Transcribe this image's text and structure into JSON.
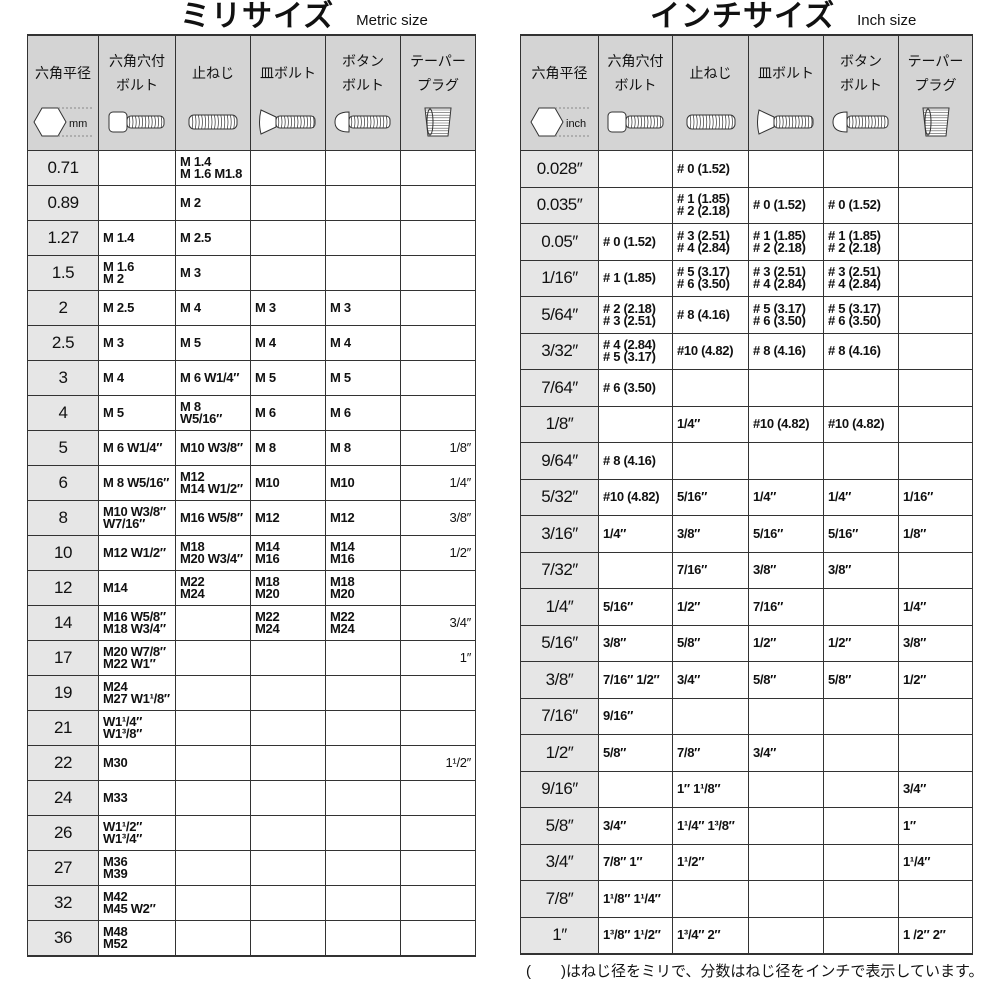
{
  "metric": {
    "title_jp": "ミリサイズ",
    "title_en": "Metric size",
    "unit": "mm",
    "headers": [
      "六角平径",
      "六角穴付\nボルト",
      "止ねじ",
      "皿ボルト",
      "ボタン\nボルト",
      "テーパー\nプラグ"
    ],
    "icons": [
      "hex-icon",
      "socket-head-bolt-icon",
      "set-screw-icon",
      "flat-head-bolt-icon",
      "button-head-bolt-icon",
      "taper-plug-icon"
    ],
    "rows": [
      [
        "0.71",
        "",
        "M 1.4\nM 1.6 M1.8",
        "",
        "",
        ""
      ],
      [
        "0.89",
        "",
        "M 2",
        "",
        "",
        ""
      ],
      [
        "1.27",
        "M 1.4",
        "M 2.5",
        "",
        "",
        ""
      ],
      [
        "1.5",
        "M 1.6\nM 2",
        "M 3",
        "",
        "",
        ""
      ],
      [
        "2",
        "M 2.5",
        "M 4",
        "M 3",
        "M 3",
        ""
      ],
      [
        "2.5",
        "M 3",
        "M 5",
        "M 4",
        "M 4",
        ""
      ],
      [
        "3",
        "M 4",
        "M 6 W1/4″",
        "M 5",
        "M 5",
        ""
      ],
      [
        "4",
        "M 5",
        "M 8 W5/16″",
        "M 6",
        "M 6",
        ""
      ],
      [
        "5",
        "M 6 W1/4″",
        "M10 W3/8″",
        "M 8",
        "M 8",
        "1/8″"
      ],
      [
        "6",
        "M 8 W5/16″",
        "M12\nM14 W1/2″",
        "M10",
        "M10",
        "1/4″"
      ],
      [
        "8",
        "M10 W3/8″\n     W7/16″",
        "M16 W5/8″",
        "M12",
        "M12",
        "3/8″"
      ],
      [
        "10",
        "M12 W1/2″",
        "M18\nM20 W3/4″",
        "M14\nM16",
        "M14\nM16",
        "1/2″"
      ],
      [
        "12",
        "M14",
        "M22\nM24",
        "M18\nM20",
        "M18\nM20",
        ""
      ],
      [
        "14",
        "M16 W5/8″\nM18 W3/4″",
        "",
        "M22\nM24",
        "M22\nM24",
        "3/4″"
      ],
      [
        "17",
        "M20 W7/8″\nM22 W1″",
        "",
        "",
        "",
        "1″"
      ],
      [
        "19",
        "M24\nM27 W1¹/8″",
        "",
        "",
        "",
        ""
      ],
      [
        "21",
        "      W1¹/4″\n      W1³/8″",
        "",
        "",
        "",
        ""
      ],
      [
        "22",
        "M30",
        "",
        "",
        "",
        "1¹/2″"
      ],
      [
        "24",
        "M33",
        "",
        "",
        "",
        ""
      ],
      [
        "26",
        "      W1¹/2″\n      W1³/4″",
        "",
        "",
        "",
        ""
      ],
      [
        "27",
        "M36\nM39",
        "",
        "",
        "",
        ""
      ],
      [
        "32",
        "M42\nM45 W2″",
        "",
        "",
        "",
        ""
      ],
      [
        "36",
        "M48\nM52",
        "",
        "",
        "",
        ""
      ]
    ]
  },
  "inch": {
    "title_jp": "インチサイズ",
    "title_en": "Inch size",
    "unit": "inch",
    "headers": [
      "六角平径",
      "六角穴付\nボルト",
      "止ねじ",
      "皿ボルト",
      "ボタン\nボルト",
      "テーパー\nプラグ"
    ],
    "icons": [
      "hex-icon",
      "socket-head-bolt-icon",
      "set-screw-icon",
      "flat-head-bolt-icon",
      "button-head-bolt-icon",
      "taper-plug-icon"
    ],
    "rows": [
      [
        "0.028″",
        "",
        "# 0 (1.52)",
        "",
        "",
        ""
      ],
      [
        "0.035″",
        "",
        "# 1 (1.85)\n# 2 (2.18)",
        "# 0 (1.52)",
        "# 0 (1.52)",
        ""
      ],
      [
        "0.05″",
        "# 0 (1.52)",
        "# 3 (2.51)\n# 4 (2.84)",
        "# 1 (1.85)\n# 2 (2.18)",
        "# 1 (1.85)\n# 2 (2.18)",
        ""
      ],
      [
        "1/16″",
        "# 1 (1.85)",
        "# 5 (3.17)\n# 6 (3.50)",
        "# 3 (2.51)\n# 4 (2.84)",
        "# 3 (2.51)\n# 4 (2.84)",
        ""
      ],
      [
        "5/64″",
        "# 2 (2.18)\n# 3 (2.51)",
        "# 8 (4.16)",
        "# 5 (3.17)\n# 6 (3.50)",
        "# 5 (3.17)\n# 6 (3.50)",
        ""
      ],
      [
        "3/32″",
        "# 4 (2.84)\n# 5 (3.17)",
        "#10 (4.82)",
        "# 8 (4.16)",
        "# 8 (4.16)",
        ""
      ],
      [
        "7/64″",
        "# 6 (3.50)",
        "",
        "",
        "",
        ""
      ],
      [
        "1/8″",
        "",
        "1/4″",
        "#10 (4.82)",
        "#10 (4.82)",
        ""
      ],
      [
        "9/64″",
        "# 8 (4.16)",
        "",
        "",
        "",
        ""
      ],
      [
        "5/32″",
        "#10 (4.82)",
        "5/16″",
        "1/4″",
        "1/4″",
        "1/16″"
      ],
      [
        "3/16″",
        "1/4″",
        "3/8″",
        "5/16″",
        "5/16″",
        "1/8″"
      ],
      [
        "7/32″",
        "",
        "7/16″",
        "3/8″",
        "3/8″",
        ""
      ],
      [
        "1/4″",
        "5/16″",
        "1/2″",
        "7/16″",
        "",
        "1/4″"
      ],
      [
        "5/16″",
        "3/8″",
        "5/8″",
        "1/2″",
        "1/2″",
        "3/8″"
      ],
      [
        "3/8″",
        "7/16″ 1/2″",
        "3/4″",
        "5/8″",
        "5/8″",
        "1/2″"
      ],
      [
        "7/16″",
        "9/16″",
        "",
        "",
        "",
        ""
      ],
      [
        "1/2″",
        "5/8″",
        "7/8″",
        "3/4″",
        "",
        ""
      ],
      [
        "9/16″",
        "",
        "  1″   1¹/8″",
        "",
        "",
        "3/4″"
      ],
      [
        "5/8″",
        "3/4″",
        "1¹/4″ 1³/8″",
        "",
        "",
        "  1″"
      ],
      [
        "3/4″",
        "7/8″   1″",
        "1¹/2″",
        "",
        "",
        "1¹/4″"
      ],
      [
        "7/8″",
        "1¹/8″ 1¹/4″",
        "",
        "",
        "",
        ""
      ],
      [
        "1″",
        "1³/8″ 1¹/2″",
        "1³/4″  2″",
        "",
        "",
        "1 /2″  2″"
      ]
    ]
  },
  "footnote": "(　　)はねじ径をミリで、分数はねじ径をインチで表示しています。"
}
